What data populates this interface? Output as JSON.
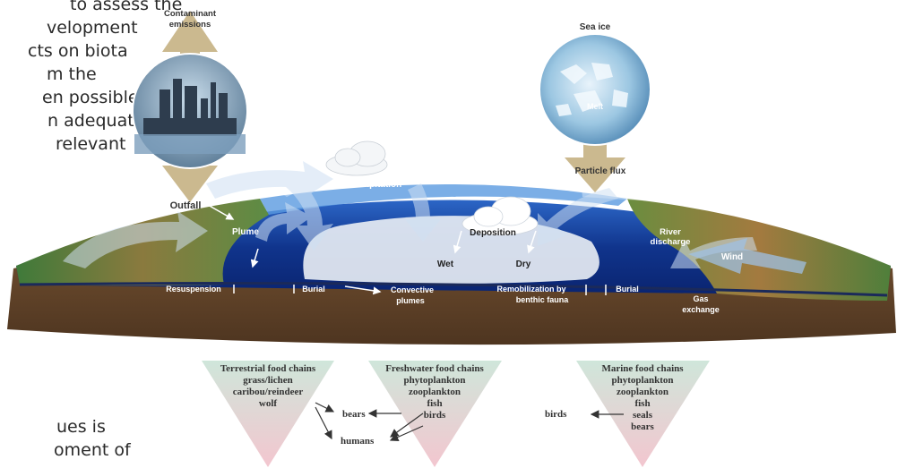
{
  "left_text": {
    "top_lines": [
      "to assess the",
      "velopment",
      "cts on biota",
      "m the",
      "en possible",
      "n adequate",
      "relevant"
    ],
    "bottom_lines": [
      "ues is",
      "oment of"
    ]
  },
  "diagram": {
    "contaminant_emissions": [
      "Contaminant",
      "emissions"
    ],
    "outfall": "Outfall",
    "sea_ice": "Sea ice",
    "melt": "Melt",
    "particle_flux": "Particle flux",
    "precipitation": "Precipitation",
    "plume": "Plume",
    "deposition": "Deposition",
    "wet": "Wet",
    "dry": "Dry",
    "river_discharge": [
      "River",
      "discharge"
    ],
    "wind": "Wind",
    "resuspension": "Resuspension",
    "burial_left": "Burial",
    "convective_plumes": [
      "Convective",
      "plumes"
    ],
    "remobilization": [
      "Remobilization by",
      "benthic fauna"
    ],
    "burial_right": "Burial",
    "gas_exchange": [
      "Gas",
      "exchange"
    ]
  },
  "food_chains": {
    "terrestrial": {
      "title": "Terrestrial food chains",
      "items": [
        "grass/lichen",
        "caribou/reindeer",
        "wolf"
      ]
    },
    "freshwater": {
      "title": "Freshwater food chains",
      "items": [
        "phytoplankton",
        "zooplankton",
        "fish",
        "birds"
      ]
    },
    "marine": {
      "title": "Marine food chains",
      "items": [
        "phytoplankton",
        "zooplankton",
        "fish",
        "seals",
        "bears"
      ]
    },
    "bears": "bears",
    "humans": "humans",
    "birds": "birds"
  },
  "colors": {
    "ocean_deep": "#0d2e86",
    "ocean_light": "#3f7fd0",
    "sediment": "#6b4a2c",
    "arrow_grey": "#b4ab8c",
    "triangle_top": "#cfe6da",
    "triangle_bottom": "#f3c6cf"
  }
}
